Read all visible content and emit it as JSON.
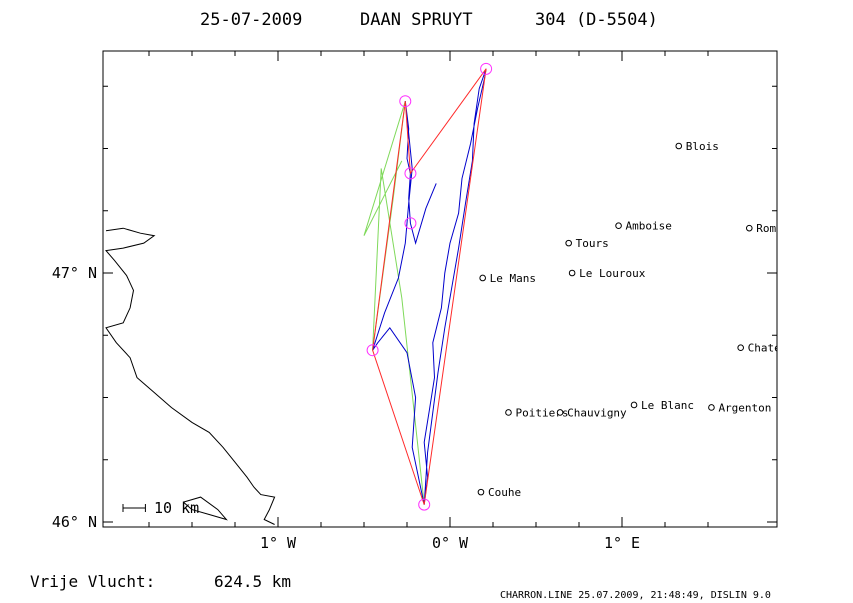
{
  "title": {
    "date": "25-07-2009",
    "pilot": "DAAN SPRUYT",
    "glider": "304 (D-5504)"
  },
  "footer": {
    "distance_label": "Vrije Vlucht:",
    "distance_value": "624.5 km",
    "credit": "CHARRON.LINE 25.07.2009, 21:48:49, DISLIN 9.0"
  },
  "scale_bar": {
    "label": "10 km",
    "length_km": 10
  },
  "map": {
    "lon_range": [
      -2.0,
      1.75
    ],
    "lat_range": [
      45.98,
      46.98
    ],
    "x_ticks": [
      {
        "lon": -1.0,
        "label": "1° W"
      },
      {
        "lon": 0.0,
        "label": "0° W"
      },
      {
        "lon": 1.0,
        "label": "1° E"
      }
    ],
    "y_ticks": [
      {
        "lat": 46.0,
        "label": "46° N"
      },
      {
        "lat": 47.0,
        "label": "47° N"
      }
    ],
    "colors": {
      "frame": "#000000",
      "coast": "#000000",
      "gps_track": "#0000cc",
      "optimized_route": "#ff2a2a",
      "alt_route": "#7fd95a",
      "turnpoint": "#ff33ff"
    }
  },
  "towns": [
    {
      "name": "Le Mans",
      "lon": 0.19,
      "lat": 46.98
    },
    {
      "name": "Blois",
      "lon": 1.33,
      "lat": 47.51
    },
    {
      "name": "Amboise",
      "lon": 0.98,
      "lat": 47.19
    },
    {
      "name": "Romorantin",
      "lon": 1.74,
      "lat": 47.18
    },
    {
      "name": "Tours",
      "lon": 0.69,
      "lat": 47.12
    },
    {
      "name": "Le Louroux",
      "lon": 0.71,
      "lat": 47.0
    },
    {
      "name": "Chateauroux-Vill",
      "lon": 1.69,
      "lat": 46.7
    },
    {
      "name": "Le Blanc",
      "lon": 1.07,
      "lat": 46.47
    },
    {
      "name": "Argenton",
      "lon": 1.52,
      "lat": 46.46
    },
    {
      "name": "Poitiers",
      "lon": 0.34,
      "lat": 46.44
    },
    {
      "name": "Chauvigny",
      "lon": 0.64,
      "lat": 46.44
    },
    {
      "name": "Couhe",
      "lon": 0.18,
      "lat": 46.12
    }
  ],
  "turnpoints": [
    {
      "lon": -0.15,
      "lat": 46.07
    },
    {
      "lon": -0.45,
      "lat": 46.69
    },
    {
      "lon": -0.26,
      "lat": 47.69
    },
    {
      "lon": -0.23,
      "lat": 47.4
    },
    {
      "lon": -0.23,
      "lat": 47.2
    },
    {
      "lon": 0.21,
      "lat": 47.82
    }
  ],
  "optimized_route": [
    {
      "lon": -0.15,
      "lat": 46.07
    },
    {
      "lon": -0.45,
      "lat": 46.69
    },
    {
      "lon": -0.26,
      "lat": 47.69
    },
    {
      "lon": -0.23,
      "lat": 47.4
    },
    {
      "lon": 0.21,
      "lat": 47.82
    },
    {
      "lon": -0.15,
      "lat": 46.07
    }
  ],
  "alt_route": [
    {
      "lon": -0.15,
      "lat": 46.07
    },
    {
      "lon": -0.28,
      "lat": 46.9
    },
    {
      "lon": -0.4,
      "lat": 47.42
    },
    {
      "lon": -0.45,
      "lat": 46.69
    },
    {
      "lon": -0.33,
      "lat": 47.3
    },
    {
      "lon": -0.26,
      "lat": 47.69
    },
    {
      "lon": -0.5,
      "lat": 47.15
    },
    {
      "lon": -0.28,
      "lat": 47.45
    }
  ],
  "gps_track": [
    {
      "lon": -0.15,
      "lat": 46.07
    },
    {
      "lon": -0.13,
      "lat": 46.18
    },
    {
      "lon": -0.15,
      "lat": 46.32
    },
    {
      "lon": -0.12,
      "lat": 46.45
    },
    {
      "lon": -0.09,
      "lat": 46.58
    },
    {
      "lon": -0.1,
      "lat": 46.72
    },
    {
      "lon": -0.05,
      "lat": 46.86
    },
    {
      "lon": -0.03,
      "lat": 47.0
    },
    {
      "lon": 0.0,
      "lat": 47.12
    },
    {
      "lon": 0.05,
      "lat": 47.24
    },
    {
      "lon": 0.07,
      "lat": 47.38
    },
    {
      "lon": 0.12,
      "lat": 47.52
    },
    {
      "lon": 0.16,
      "lat": 47.66
    },
    {
      "lon": 0.2,
      "lat": 47.78
    },
    {
      "lon": 0.21,
      "lat": 47.82
    },
    {
      "lon": 0.17,
      "lat": 47.74
    },
    {
      "lon": 0.14,
      "lat": 47.6
    },
    {
      "lon": 0.13,
      "lat": 47.45
    },
    {
      "lon": 0.09,
      "lat": 47.28
    },
    {
      "lon": 0.05,
      "lat": 47.1
    },
    {
      "lon": 0.01,
      "lat": 46.94
    },
    {
      "lon": -0.03,
      "lat": 46.78
    },
    {
      "lon": -0.07,
      "lat": 46.6
    },
    {
      "lon": -0.1,
      "lat": 46.44
    },
    {
      "lon": -0.13,
      "lat": 46.28
    },
    {
      "lon": -0.15,
      "lat": 46.07
    },
    {
      "lon": -0.22,
      "lat": 46.3
    },
    {
      "lon": -0.2,
      "lat": 46.5
    },
    {
      "lon": -0.25,
      "lat": 46.68
    },
    {
      "lon": -0.35,
      "lat": 46.78
    },
    {
      "lon": -0.42,
      "lat": 46.72
    },
    {
      "lon": -0.45,
      "lat": 46.69
    },
    {
      "lon": -0.38,
      "lat": 46.84
    },
    {
      "lon": -0.3,
      "lat": 46.98
    },
    {
      "lon": -0.26,
      "lat": 47.12
    },
    {
      "lon": -0.24,
      "lat": 47.28
    },
    {
      "lon": -0.22,
      "lat": 47.42
    },
    {
      "lon": -0.24,
      "lat": 47.56
    },
    {
      "lon": -0.26,
      "lat": 47.69
    },
    {
      "lon": -0.24,
      "lat": 47.58
    },
    {
      "lon": -0.25,
      "lat": 47.46
    },
    {
      "lon": -0.23,
      "lat": 47.4
    },
    {
      "lon": -0.24,
      "lat": 47.3
    },
    {
      "lon": -0.23,
      "lat": 47.2
    },
    {
      "lon": -0.2,
      "lat": 47.12
    },
    {
      "lon": -0.14,
      "lat": 47.26
    },
    {
      "lon": -0.08,
      "lat": 47.36
    }
  ],
  "coastline": [
    {
      "lon": -2.0,
      "lat": 47.17
    },
    {
      "lon": -1.9,
      "lat": 47.18
    },
    {
      "lon": -1.8,
      "lat": 47.16
    },
    {
      "lon": -1.72,
      "lat": 47.15
    },
    {
      "lon": -1.78,
      "lat": 47.12
    },
    {
      "lon": -1.9,
      "lat": 47.1
    },
    {
      "lon": -2.0,
      "lat": 47.09
    },
    {
      "lon": -1.95,
      "lat": 47.05
    },
    {
      "lon": -1.88,
      "lat": 46.99
    },
    {
      "lon": -1.84,
      "lat": 46.93
    },
    {
      "lon": -1.86,
      "lat": 46.86
    },
    {
      "lon": -1.9,
      "lat": 46.8
    },
    {
      "lon": -2.0,
      "lat": 46.78
    },
    {
      "lon": -1.94,
      "lat": 46.72
    },
    {
      "lon": -1.86,
      "lat": 46.66
    },
    {
      "lon": -1.82,
      "lat": 46.58
    },
    {
      "lon": -1.72,
      "lat": 46.52
    },
    {
      "lon": -1.62,
      "lat": 46.46
    },
    {
      "lon": -1.5,
      "lat": 46.4
    },
    {
      "lon": -1.4,
      "lat": 46.36
    },
    {
      "lon": -1.32,
      "lat": 46.3
    },
    {
      "lon": -1.25,
      "lat": 46.24
    },
    {
      "lon": -1.18,
      "lat": 46.18
    },
    {
      "lon": -1.14,
      "lat": 46.14
    },
    {
      "lon": -1.1,
      "lat": 46.11
    },
    {
      "lon": -1.02,
      "lat": 46.1
    },
    {
      "lon": -1.05,
      "lat": 46.05
    },
    {
      "lon": -1.08,
      "lat": 46.01
    },
    {
      "lon": -1.02,
      "lat": 45.99
    }
  ],
  "island": [
    {
      "lon": -1.55,
      "lat": 46.08
    },
    {
      "lon": -1.45,
      "lat": 46.1
    },
    {
      "lon": -1.35,
      "lat": 46.05
    },
    {
      "lon": -1.3,
      "lat": 46.01
    },
    {
      "lon": -1.4,
      "lat": 46.03
    },
    {
      "lon": -1.5,
      "lat": 46.05
    },
    {
      "lon": -1.55,
      "lat": 46.08
    }
  ]
}
